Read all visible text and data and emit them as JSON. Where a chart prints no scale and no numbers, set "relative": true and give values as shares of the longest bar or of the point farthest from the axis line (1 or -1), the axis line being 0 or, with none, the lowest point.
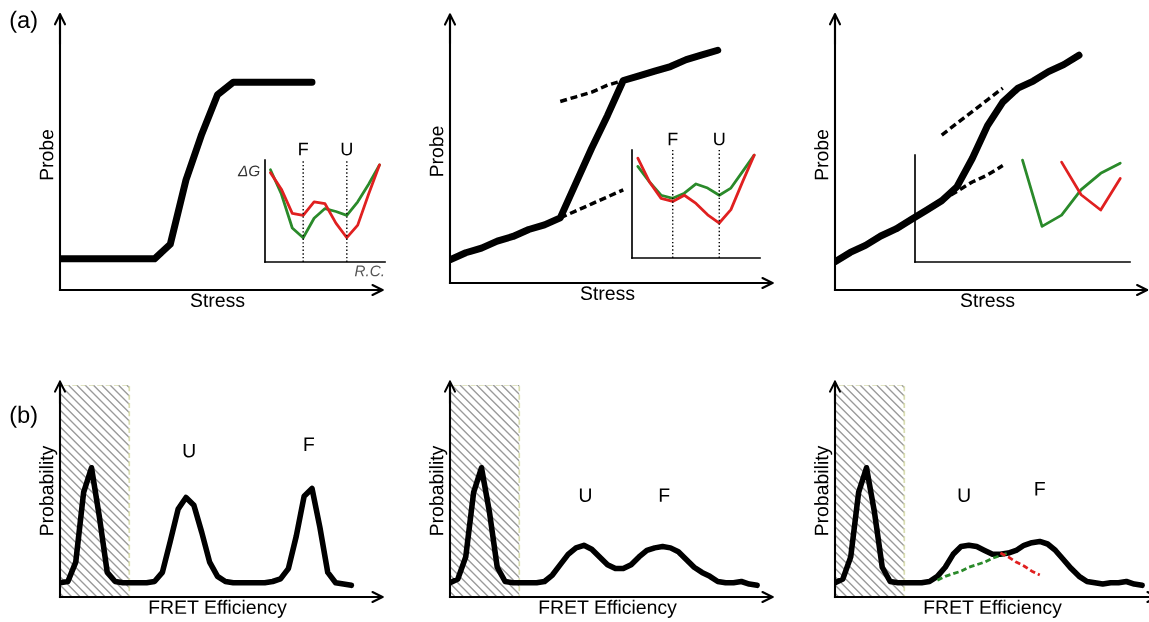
{
  "chart_data": [
    {
      "type": "line",
      "relative": true,
      "xlabel": "Stress",
      "ylabel": "Probe",
      "annotations": [
        "(a)"
      ],
      "categories": [
        null,
        null,
        null,
        null,
        null,
        null,
        null,
        null,
        null,
        null,
        null,
        null,
        null,
        null,
        null,
        null,
        null,
        null,
        null,
        null,
        null
      ],
      "series": [
        {
          "color": "#000000",
          "line_style": "solid",
          "values": [
            0.15,
            0.15,
            0.15,
            0.15,
            0.15,
            0.15,
            0.15,
            0.22,
            0.53,
            0.75,
            0.94,
            1.0,
            1.0,
            1.0,
            1.0,
            1.0,
            1.0,
            null,
            null,
            null,
            null
          ]
        }
      ]
    },
    {
      "type": "line",
      "relative": true,
      "xlabel": "R.C.",
      "ylabel": "ΔG",
      "annotations": [
        "F",
        "U"
      ],
      "categories": [
        null,
        null,
        null,
        null,
        null,
        null,
        null,
        null,
        null,
        null,
        null
      ],
      "series": [
        {
          "color": "#2a8a2a",
          "line_style": "solid",
          "values": [
            0.95,
            0.7,
            0.35,
            0.25,
            0.45,
            0.55,
            0.52,
            0.48,
            0.62,
            0.8,
            1.0
          ]
        },
        {
          "color": "#e02020",
          "line_style": "solid",
          "values": [
            0.92,
            0.75,
            0.5,
            0.48,
            0.62,
            0.6,
            0.4,
            0.25,
            0.38,
            0.7,
            1.0
          ]
        }
      ]
    },
    {
      "type": "line",
      "relative": true,
      "xlabel": "Stress",
      "ylabel": "Probe",
      "categories": [
        null,
        null,
        null,
        null,
        null,
        null,
        null,
        null,
        null,
        null,
        null,
        null,
        null,
        null,
        null,
        null,
        null,
        null,
        null,
        null,
        null
      ],
      "series": [
        {
          "color": "#000000",
          "line_style": "solid",
          "values": [
            0.1,
            0.13,
            0.15,
            0.18,
            0.2,
            0.23,
            0.25,
            0.28,
            0.43,
            0.58,
            0.72,
            0.87,
            0.89,
            0.91,
            0.93,
            0.96,
            0.98,
            1.0,
            null,
            null,
            null
          ]
        },
        {
          "color": "#000000",
          "line_style": "dashed",
          "values": [
            null,
            null,
            null,
            null,
            null,
            null,
            null,
            0.28,
            0.31,
            0.34,
            0.37,
            0.4,
            null,
            null,
            null,
            null,
            null,
            null,
            null,
            null,
            null
          ]
        },
        {
          "color": "#000000",
          "line_style": "dashed",
          "values": [
            null,
            null,
            null,
            null,
            null,
            null,
            null,
            0.78,
            0.8,
            0.82,
            0.85,
            0.87,
            null,
            null,
            null,
            null,
            null,
            null,
            null,
            null,
            null
          ]
        }
      ]
    },
    {
      "type": "line",
      "relative": true,
      "annotations": [
        "F",
        "U"
      ],
      "categories": [
        null,
        null,
        null,
        null,
        null,
        null,
        null,
        null,
        null,
        null,
        null
      ],
      "series": [
        {
          "color": "#2a8a2a",
          "line_style": "solid",
          "values": [
            0.89,
            0.74,
            0.61,
            0.58,
            0.63,
            0.72,
            0.68,
            0.61,
            0.68,
            0.84,
            1.0
          ]
        },
        {
          "color": "#e02020",
          "line_style": "solid",
          "values": [
            0.97,
            0.74,
            0.58,
            0.55,
            0.61,
            0.53,
            0.42,
            0.34,
            0.47,
            0.74,
            1.0
          ]
        }
      ]
    },
    {
      "type": "line",
      "relative": true,
      "xlabel": "Stress",
      "ylabel": "Probe",
      "categories": [
        null,
        null,
        null,
        null,
        null,
        null,
        null,
        null,
        null,
        null,
        null,
        null,
        null,
        null,
        null,
        null,
        null,
        null,
        null,
        null,
        null
      ],
      "series": [
        {
          "color": "#000000",
          "line_style": "solid",
          "values": [
            0.12,
            0.16,
            0.19,
            0.23,
            0.26,
            0.3,
            0.34,
            0.38,
            0.44,
            0.56,
            0.7,
            0.8,
            0.86,
            0.89,
            0.93,
            0.96,
            1.0,
            null,
            null,
            null,
            null
          ]
        },
        {
          "color": "#000000",
          "line_style": "dashed",
          "values": [
            null,
            null,
            null,
            null,
            null,
            null,
            null,
            0.38,
            0.42,
            0.46,
            0.49,
            0.53,
            null,
            null,
            null,
            null,
            null,
            null,
            null,
            null,
            null
          ]
        },
        {
          "color": "#000000",
          "line_style": "dashed",
          "values": [
            null,
            null,
            null,
            null,
            null,
            null,
            null,
            0.66,
            0.71,
            0.76,
            0.81,
            0.86,
            null,
            null,
            null,
            null,
            null,
            null,
            null,
            null,
            null
          ]
        }
      ]
    },
    {
      "type": "line",
      "relative": true,
      "categories": [
        null,
        null,
        null,
        null,
        null,
        null,
        null,
        null,
        null,
        null,
        null
      ],
      "series": [
        {
          "color": "#2a8a2a",
          "line_style": "solid",
          "values": [
            null,
            null,
            null,
            null,
            null,
            1.0,
            0.35,
            0.46,
            0.71,
            0.87,
            0.97
          ]
        },
        {
          "color": "#e02020",
          "line_style": "solid",
          "values": [
            null,
            null,
            null,
            null,
            null,
            null,
            null,
            0.98,
            0.66,
            0.51,
            0.82
          ]
        }
      ]
    },
    {
      "type": "line",
      "relative": true,
      "xlabel": "FRET Efficiency",
      "ylabel": "Probability",
      "annotations": [
        "(b)",
        "U",
        "F"
      ],
      "categories": [
        null,
        null,
        null,
        null,
        null,
        null,
        null,
        null,
        null,
        null,
        null,
        null,
        null,
        null,
        null,
        null,
        null,
        null,
        null,
        null,
        null,
        null,
        null,
        null,
        null,
        null,
        null,
        null,
        null,
        null,
        null,
        null,
        null,
        null,
        null,
        null,
        null,
        null,
        null,
        null,
        null
      ],
      "series": [
        {
          "color": "#000000",
          "line_style": "solid",
          "values": [
            0.11,
            0.12,
            0.27,
            0.81,
            1.0,
            0.62,
            0.19,
            0.12,
            0.11,
            0.11,
            0.11,
            0.11,
            0.12,
            0.19,
            0.43,
            0.68,
            0.77,
            0.71,
            0.5,
            0.27,
            0.16,
            0.12,
            0.11,
            0.11,
            0.11,
            0.11,
            0.11,
            0.12,
            0.14,
            0.22,
            0.47,
            0.78,
            0.84,
            0.54,
            0.19,
            0.11,
            0.1,
            0.09,
            null,
            null,
            null
          ]
        }
      ]
    },
    {
      "type": "line",
      "relative": true,
      "xlabel": "FRET Efficiency",
      "ylabel": "Probability",
      "annotations": [
        "U",
        "F"
      ],
      "categories": [
        null,
        null,
        null,
        null,
        null,
        null,
        null,
        null,
        null,
        null,
        null,
        null,
        null,
        null,
        null,
        null,
        null,
        null,
        null,
        null,
        null,
        null,
        null,
        null,
        null,
        null,
        null,
        null,
        null,
        null,
        null,
        null,
        null,
        null,
        null,
        null,
        null,
        null,
        null,
        null,
        null
      ],
      "series": [
        {
          "color": "#000000",
          "line_style": "solid",
          "values": [
            0.11,
            0.14,
            0.31,
            0.81,
            1.0,
            0.66,
            0.23,
            0.12,
            0.11,
            0.11,
            0.11,
            0.11,
            0.12,
            0.17,
            0.25,
            0.33,
            0.38,
            0.4,
            0.37,
            0.31,
            0.25,
            0.22,
            0.22,
            0.25,
            0.31,
            0.36,
            0.38,
            0.39,
            0.38,
            0.35,
            0.29,
            0.23,
            0.19,
            0.16,
            0.12,
            0.11,
            0.11,
            0.12,
            0.1,
            0.09,
            null
          ]
        }
      ]
    },
    {
      "type": "line",
      "relative": true,
      "xlabel": "FRET Efficiency",
      "ylabel": "Probability",
      "annotations": [
        "U",
        "F"
      ],
      "categories": [
        null,
        null,
        null,
        null,
        null,
        null,
        null,
        null,
        null,
        null,
        null,
        null,
        null,
        null,
        null,
        null,
        null,
        null,
        null,
        null,
        null,
        null,
        null,
        null,
        null,
        null,
        null,
        null,
        null,
        null,
        null,
        null,
        null,
        null,
        null,
        null,
        null,
        null,
        null,
        null,
        null
      ],
      "series": [
        {
          "color": "#000000",
          "line_style": "solid",
          "values": [
            0.11,
            0.14,
            0.31,
            0.81,
            1.0,
            0.66,
            0.23,
            0.12,
            0.11,
            0.11,
            0.11,
            0.11,
            0.12,
            0.16,
            0.23,
            0.33,
            0.39,
            0.4,
            0.39,
            0.36,
            0.33,
            0.33,
            0.34,
            0.36,
            0.4,
            0.42,
            0.43,
            0.41,
            0.36,
            0.29,
            0.22,
            0.16,
            0.12,
            0.11,
            0.1,
            0.11,
            0.11,
            0.12,
            0.1,
            0.09,
            null
          ]
        },
        {
          "color": "#2a8a2a",
          "line_style": "dashed",
          "values": [
            null,
            null,
            null,
            null,
            null,
            null,
            null,
            null,
            null,
            null,
            null,
            null,
            null,
            0.13,
            0.16,
            0.18,
            0.2,
            0.23,
            0.25,
            0.27,
            0.3,
            0.32,
            0.34,
            null,
            null,
            null,
            null,
            null,
            null,
            null,
            null,
            null,
            null,
            null,
            null,
            null,
            null,
            null,
            null,
            null,
            null
          ]
        },
        {
          "color": "#e02020",
          "line_style": "dashed",
          "values": [
            null,
            null,
            null,
            null,
            null,
            null,
            null,
            null,
            null,
            null,
            null,
            null,
            null,
            null,
            null,
            null,
            null,
            null,
            null,
            null,
            null,
            0.34,
            0.31,
            0.27,
            0.24,
            0.2,
            0.17,
            null,
            null,
            null,
            null,
            null,
            null,
            null,
            null,
            null,
            null,
            null,
            null,
            null,
            null
          ]
        }
      ]
    }
  ]
}
